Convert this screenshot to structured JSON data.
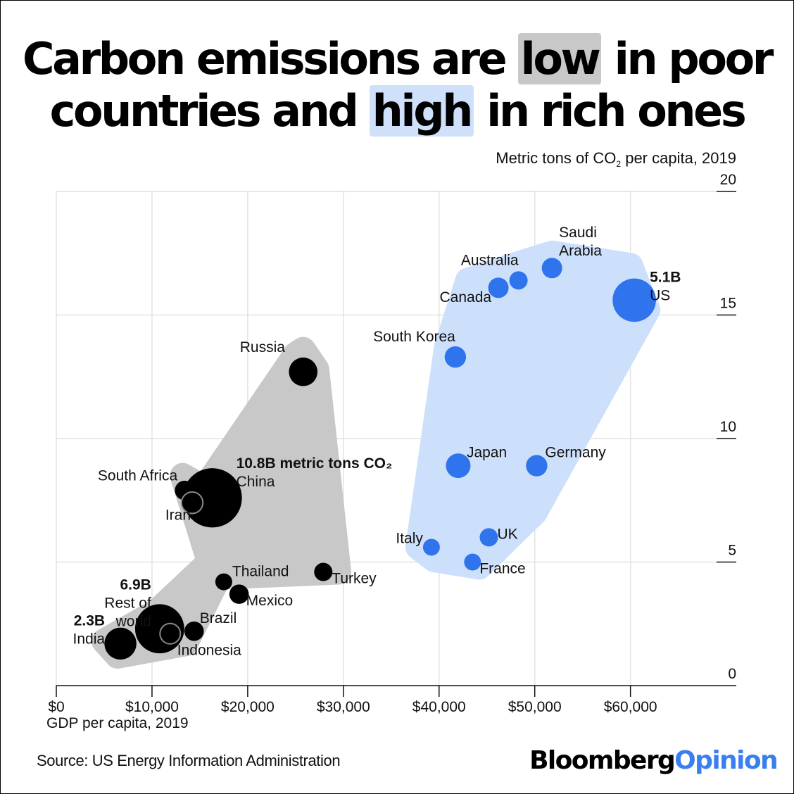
{
  "title": {
    "line1_pre": "Carbon emissions are ",
    "line1_hl": "low",
    "line1_post": " in poor",
    "line2_pre": "countries and ",
    "line2_hl": "high",
    "line2_post": " in rich ones"
  },
  "y_unit": {
    "pre": "Metric tons of CO",
    "sub": "2",
    "post": " per capita, 2019"
  },
  "x_label": "GDP per capita, 2019",
  "source": "Source:  US Energy Information Administration",
  "logo": {
    "part1": "Bloomberg",
    "part2": "Opinion"
  },
  "colors": {
    "low_group": "#c8c8c8",
    "high_group": "#cde0fb",
    "low_dot": "#000000",
    "high_dot": "#2f74ec",
    "hl_low": "#c8c8c8",
    "hl_high": "#cfe0fa",
    "brand_accent": "#3a7ff0"
  },
  "chart_data": {
    "type": "scatter",
    "xlabel": "GDP per capita, 2019",
    "ylabel": "Metric tons of CO2 per capita, 2019",
    "xlim": [
      0,
      69000
    ],
    "ylim": [
      0,
      20
    ],
    "x_ticks": [
      0,
      10000,
      20000,
      30000,
      40000,
      50000,
      60000
    ],
    "x_tick_labels": [
      "$0",
      "$10,000",
      "$20,000",
      "$30,000",
      "$40,000",
      "$50,000",
      "$60,000"
    ],
    "y_ticks": [
      0,
      5,
      10,
      15,
      20
    ],
    "y_tick_labels": [
      "0",
      "5",
      "10",
      "15",
      "20"
    ],
    "grid": true,
    "series": [
      {
        "group": "low",
        "points": [
          {
            "label": "Russia",
            "x": 25800,
            "y": 12.7,
            "size": 1.7
          },
          {
            "label": "China",
            "total": "10.8B metric tons CO₂",
            "x": 16300,
            "y": 7.6,
            "size": 10.8
          },
          {
            "label": "South Africa",
            "x": 13400,
            "y": 7.9,
            "size": 0.5
          },
          {
            "label": "Iran",
            "x": 14200,
            "y": 7.4,
            "size": 0.7
          },
          {
            "label": "Thailand",
            "x": 17500,
            "y": 4.2,
            "size": 0.3
          },
          {
            "label": "Turkey",
            "x": 27900,
            "y": 4.6,
            "size": 0.4
          },
          {
            "label": "Mexico",
            "x": 19100,
            "y": 3.7,
            "size": 0.5
          },
          {
            "label": "Rest of world",
            "total": "6.9B",
            "x": 10800,
            "y": 2.3,
            "size": 6.9
          },
          {
            "label": "Brazil",
            "x": 14400,
            "y": 2.2,
            "size": 0.5
          },
          {
            "label": "Indonesia",
            "x": 11900,
            "y": 2.1,
            "size": 0.6
          },
          {
            "label": "India",
            "total": "2.3B",
            "x": 6700,
            "y": 1.7,
            "size": 2.3
          }
        ]
      },
      {
        "group": "high",
        "points": [
          {
            "label": "Saudi Arabia",
            "x": 51800,
            "y": 16.9,
            "size": 0.6
          },
          {
            "label": "Australia",
            "x": 48300,
            "y": 16.4,
            "size": 0.4
          },
          {
            "label": "Canada",
            "x": 46200,
            "y": 16.1,
            "size": 0.6
          },
          {
            "label": "US",
            "total": "5.1B",
            "x": 60400,
            "y": 15.6,
            "size": 5.1
          },
          {
            "label": "South Korea",
            "x": 41700,
            "y": 13.3,
            "size": 0.7
          },
          {
            "label": "Japan",
            "x": 42000,
            "y": 8.9,
            "size": 1.1
          },
          {
            "label": "Germany",
            "x": 50200,
            "y": 8.9,
            "size": 0.7
          },
          {
            "label": "UK",
            "x": 45200,
            "y": 6.0,
            "size": 0.4
          },
          {
            "label": "Italy",
            "x": 39200,
            "y": 5.6,
            "size": 0.3
          },
          {
            "label": "France",
            "x": 43500,
            "y": 5.0,
            "size": 0.3
          }
        ]
      }
    ]
  }
}
